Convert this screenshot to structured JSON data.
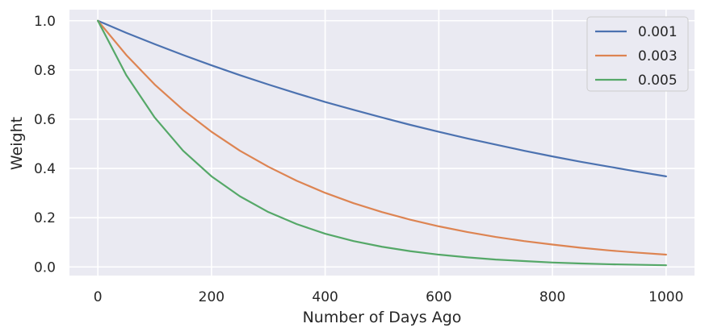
{
  "chart_data": {
    "type": "line",
    "title": "",
    "xlabel": "Number of Days Ago",
    "ylabel": "Weight",
    "xlim": [
      -50,
      1050
    ],
    "ylim": [
      -0.035,
      1.045
    ],
    "xticks": [
      0,
      200,
      400,
      600,
      800,
      1000
    ],
    "yticks": [
      0.0,
      0.2,
      0.4,
      0.6,
      0.8,
      1.0
    ],
    "xtick_labels": [
      "0",
      "200",
      "400",
      "600",
      "800",
      "1000"
    ],
    "ytick_labels": [
      "0.0",
      "0.2",
      "0.4",
      "0.6",
      "0.8",
      "1.0"
    ],
    "grid": true,
    "legend_position": "top-right",
    "x": [
      0,
      50,
      100,
      150,
      200,
      250,
      300,
      350,
      400,
      450,
      500,
      550,
      600,
      650,
      700,
      750,
      800,
      850,
      900,
      950,
      1000
    ],
    "series": [
      {
        "name": "0.001",
        "color": "#4c72b0",
        "values": [
          1.0,
          0.951,
          0.905,
          0.861,
          0.819,
          0.779,
          0.741,
          0.705,
          0.67,
          0.638,
          0.607,
          0.577,
          0.549,
          0.522,
          0.497,
          0.472,
          0.449,
          0.427,
          0.407,
          0.387,
          0.368
        ]
      },
      {
        "name": "0.003",
        "color": "#dd8452",
        "values": [
          1.0,
          0.861,
          0.741,
          0.638,
          0.549,
          0.472,
          0.407,
          0.35,
          0.301,
          0.259,
          0.223,
          0.192,
          0.165,
          0.142,
          0.122,
          0.105,
          0.091,
          0.078,
          0.067,
          0.058,
          0.05
        ]
      },
      {
        "name": "0.005",
        "color": "#55a868",
        "values": [
          1.0,
          0.779,
          0.607,
          0.472,
          0.368,
          0.287,
          0.223,
          0.174,
          0.135,
          0.105,
          0.082,
          0.064,
          0.05,
          0.039,
          0.03,
          0.024,
          0.018,
          0.014,
          0.011,
          0.009,
          0.007
        ]
      }
    ]
  }
}
